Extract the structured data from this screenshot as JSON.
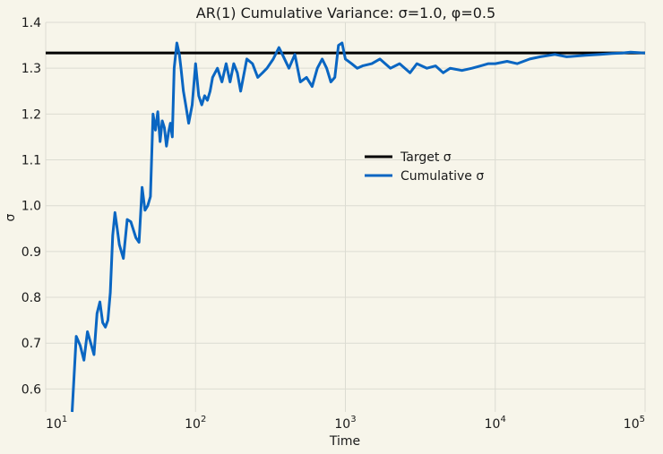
{
  "chart_data": {
    "type": "line",
    "title": "AR(1) Cumulative Variance: σ=1.0, φ=0.5",
    "xlabel": "Time",
    "ylabel": "σ",
    "xscale": "log",
    "xlim": [
      10,
      100000
    ],
    "ylim": [
      0.55,
      1.4
    ],
    "x_ticks": [
      10,
      100,
      1000,
      10000,
      100000
    ],
    "x_tick_labels": [
      {
        "base": "10",
        "exp": "1"
      },
      {
        "base": "10",
        "exp": "2"
      },
      {
        "base": "10",
        "exp": "3"
      },
      {
        "base": "10",
        "exp": "4"
      },
      {
        "base": "10",
        "exp": "5"
      }
    ],
    "y_ticks": [
      0.6,
      0.7,
      0.8,
      0.9,
      1.0,
      1.1,
      1.2,
      1.3,
      1.4
    ],
    "y_tick_labels": [
      "0.6",
      "0.7",
      "0.8",
      "0.9",
      "1.0",
      "1.1",
      "1.2",
      "1.3",
      "1.4"
    ],
    "grid": true,
    "legend_position": "center-right",
    "series": [
      {
        "name": "Target σ",
        "color": "#000000",
        "x": [
          10,
          100000
        ],
        "y": [
          1.3333,
          1.3333
        ]
      },
      {
        "name": "Cumulative σ",
        "color": "#0a66c2",
        "x": [
          15,
          16,
          17,
          18,
          19,
          20,
          21,
          22,
          23,
          24,
          25,
          26,
          27,
          28,
          29,
          30,
          31,
          33,
          35,
          37,
          40,
          42,
          44,
          46,
          48,
          50,
          52,
          54,
          56,
          58,
          60,
          62,
          64,
          66,
          68,
          70,
          72,
          75,
          78,
          80,
          83,
          86,
          90,
          95,
          100,
          105,
          110,
          115,
          120,
          125,
          130,
          140,
          150,
          160,
          170,
          180,
          190,
          200,
          220,
          240,
          260,
          280,
          300,
          330,
          360,
          380,
          420,
          460,
          500,
          550,
          600,
          650,
          700,
          750,
          800,
          850,
          900,
          950,
          1000,
          1100,
          1200,
          1300,
          1500,
          1700,
          2000,
          2300,
          2700,
          3000,
          3500,
          4000,
          4500,
          5000,
          6000,
          7000,
          8000,
          9000,
          10000,
          12000,
          14000,
          17000,
          20000,
          25000,
          30000,
          40000,
          50000,
          60000,
          70000,
          80000,
          100000
        ],
        "y": [
          0.55,
          0.715,
          0.695,
          0.663,
          0.725,
          0.7,
          0.675,
          0.765,
          0.79,
          0.745,
          0.735,
          0.75,
          0.81,
          0.935,
          0.985,
          0.95,
          0.915,
          0.885,
          0.97,
          0.965,
          0.93,
          0.92,
          1.04,
          0.99,
          1.0,
          1.02,
          1.2,
          1.165,
          1.205,
          1.14,
          1.185,
          1.17,
          1.13,
          1.16,
          1.18,
          1.15,
          1.3,
          1.355,
          1.33,
          1.3,
          1.25,
          1.22,
          1.18,
          1.22,
          1.31,
          1.24,
          1.22,
          1.24,
          1.23,
          1.25,
          1.28,
          1.3,
          1.27,
          1.31,
          1.27,
          1.31,
          1.29,
          1.25,
          1.32,
          1.31,
          1.28,
          1.29,
          1.3,
          1.32,
          1.345,
          1.33,
          1.3,
          1.33,
          1.27,
          1.28,
          1.26,
          1.3,
          1.32,
          1.3,
          1.27,
          1.28,
          1.35,
          1.355,
          1.32,
          1.31,
          1.3,
          1.305,
          1.31,
          1.32,
          1.3,
          1.31,
          1.29,
          1.31,
          1.3,
          1.305,
          1.29,
          1.3,
          1.295,
          1.3,
          1.305,
          1.31,
          1.31,
          1.315,
          1.31,
          1.32,
          1.325,
          1.33,
          1.325,
          1.328,
          1.33,
          1.332,
          1.333,
          1.335,
          1.333
        ]
      }
    ]
  }
}
